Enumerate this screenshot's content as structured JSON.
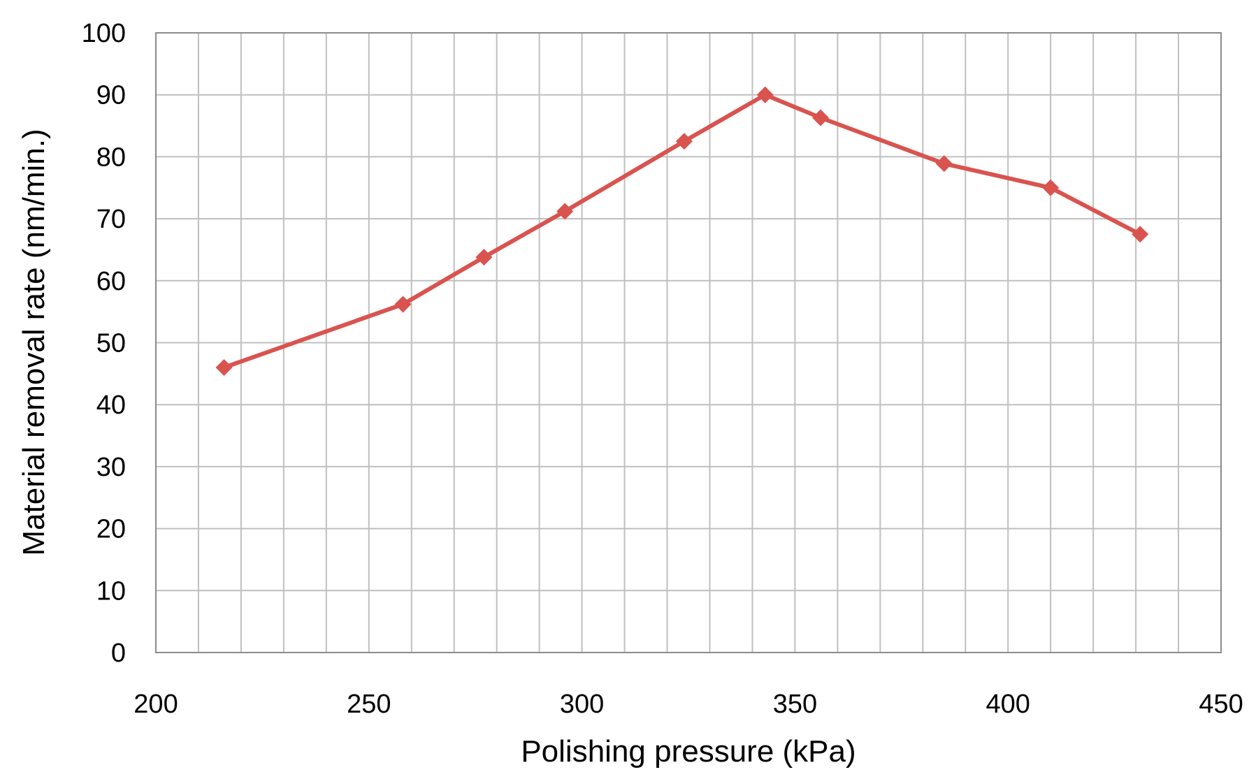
{
  "chart_data": {
    "type": "line",
    "title": "",
    "xlabel": "Polishing pressure (kPa)",
    "ylabel": "Material removal rate (nm/min.)",
    "xlim": [
      200,
      450
    ],
    "ylim": [
      0,
      100
    ],
    "x_ticks": [
      200,
      250,
      300,
      350,
      400,
      450
    ],
    "x_tick_labels": [
      "200",
      "250",
      "300",
      "350",
      "400",
      "450"
    ],
    "x_minor_step": 10,
    "y_ticks": [
      0,
      10,
      20,
      30,
      40,
      50,
      60,
      70,
      80,
      90,
      100
    ],
    "y_tick_labels": [
      "0",
      "10",
      "20",
      "30",
      "40",
      "50",
      "60",
      "70",
      "80",
      "90",
      "100"
    ],
    "grid": true,
    "legend": "none",
    "series": [
      {
        "color": "#d9534f",
        "marker": "diamond",
        "x": [
          216,
          258,
          277,
          296,
          324,
          343,
          356,
          385,
          410,
          431
        ],
        "y": [
          46,
          56.2,
          63.8,
          71.2,
          82.5,
          90,
          86.3,
          78.9,
          75,
          67.5
        ]
      }
    ]
  }
}
